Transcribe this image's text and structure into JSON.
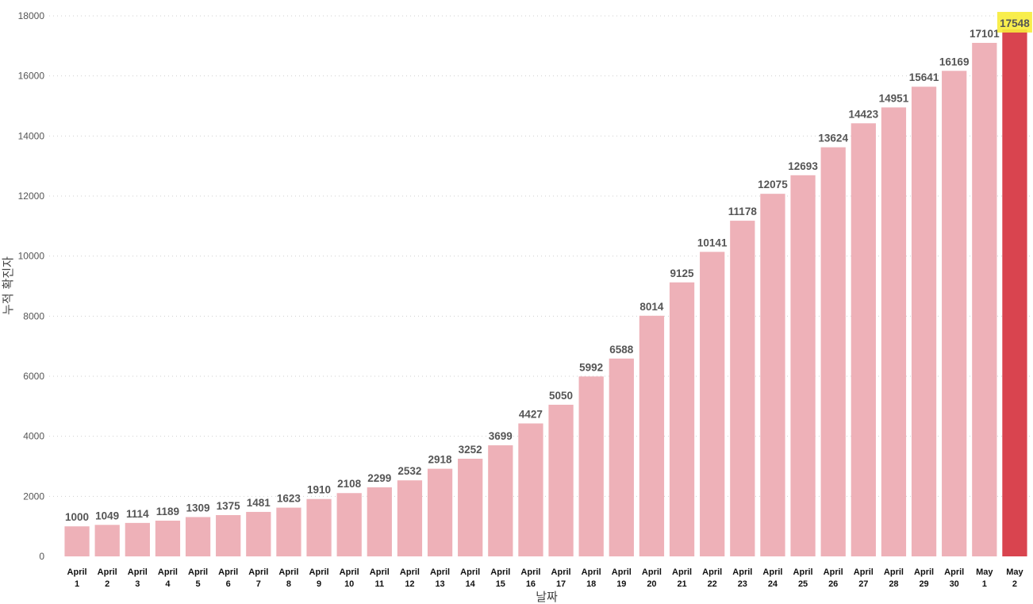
{
  "chart_data": {
    "type": "bar",
    "title": "",
    "xlabel": "날짜",
    "ylabel": "누적 확진자",
    "ylim": [
      0,
      18000
    ],
    "yticks": [
      0,
      2000,
      4000,
      6000,
      8000,
      10000,
      12000,
      14000,
      16000,
      18000
    ],
    "grid": true,
    "categories": [
      [
        "April",
        "1"
      ],
      [
        "April",
        "2"
      ],
      [
        "April",
        "3"
      ],
      [
        "April",
        "4"
      ],
      [
        "April",
        "5"
      ],
      [
        "April",
        "6"
      ],
      [
        "April",
        "7"
      ],
      [
        "April",
        "8"
      ],
      [
        "April",
        "9"
      ],
      [
        "April",
        "10"
      ],
      [
        "April",
        "11"
      ],
      [
        "April",
        "12"
      ],
      [
        "April",
        "13"
      ],
      [
        "April",
        "14"
      ],
      [
        "April",
        "15"
      ],
      [
        "April",
        "16"
      ],
      [
        "April",
        "17"
      ],
      [
        "April",
        "18"
      ],
      [
        "April",
        "19"
      ],
      [
        "April",
        "20"
      ],
      [
        "April",
        "21"
      ],
      [
        "April",
        "22"
      ],
      [
        "April",
        "23"
      ],
      [
        "April",
        "24"
      ],
      [
        "April",
        "25"
      ],
      [
        "April",
        "26"
      ],
      [
        "April",
        "27"
      ],
      [
        "April",
        "28"
      ],
      [
        "April",
        "29"
      ],
      [
        "April",
        "30"
      ],
      [
        "May",
        "1"
      ],
      [
        "May",
        "2"
      ]
    ],
    "values": [
      1000,
      1049,
      1114,
      1189,
      1309,
      1375,
      1481,
      1623,
      1910,
      2108,
      2299,
      2532,
      2918,
      3252,
      3699,
      4427,
      5050,
      5992,
      6588,
      8014,
      9125,
      10141,
      11178,
      12075,
      12693,
      13624,
      14423,
      14951,
      15641,
      16169,
      17101,
      17548
    ],
    "highlight_index": 31,
    "colors": {
      "bar": "#eeb1b8",
      "bar_highlight": "#d9444f",
      "label_highlight_bg": "#f7ec3a"
    }
  }
}
